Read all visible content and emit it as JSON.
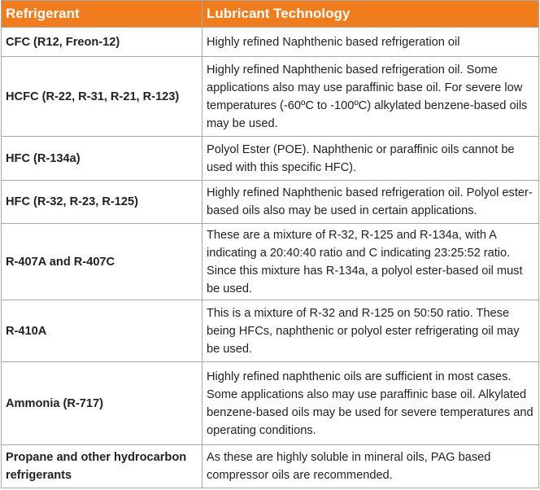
{
  "table": {
    "header": [
      "Refrigerant",
      "Lubricant Technology"
    ],
    "rows": [
      [
        "CFC (R12, Freon-12)",
        "Highly refined Naphthenic based refrigeration oil"
      ],
      [
        "HCFC (R-22, R-31, R-21, R-123)",
        "Highly refined Naphthenic based refrigeration oil. Some applications also may use paraffinic base oil. For severe low temperatures (-60ºC to -100ºC) alkylated benzene-based oils may be used."
      ],
      [
        "HFC (R-134a)",
        "Polyol Ester (POE). Naphthenic or paraffinic oils cannot be used with this specific HFC)."
      ],
      [
        "HFC (R-32, R-23, R-125)",
        "Highly refined Naphthenic based refrigeration oil. Polyol ester-based oils also may be used in certain applications."
      ],
      [
        "R-407A and R-407C",
        "These are a mixture of R-32, R-125 and R-134a, with A indicating a 20:40:40 ratio and C indicating 23:25:52 ratio. Since this mixture has R-134a, a polyol ester-based oil must be used."
      ],
      [
        "R-410A",
        "This is a mixture of R-32 and R-125 on 50:50 ratio. These being HFCs, naphthenic or polyol ester refrigerating oil may be used."
      ],
      [
        "Ammonia (R-717)",
        "Highly refined naphthenic oils are sufficient in most cases. Some applications also may use paraffinic base oil. Alkylated benzene-based oils may be used for severe temperatures and operating conditions."
      ],
      [
        "Propane and other hydrocarbon refrigerants",
        "As these are highly soluble in mineral oils, PAG based compressor oils are recommended."
      ]
    ]
  }
}
